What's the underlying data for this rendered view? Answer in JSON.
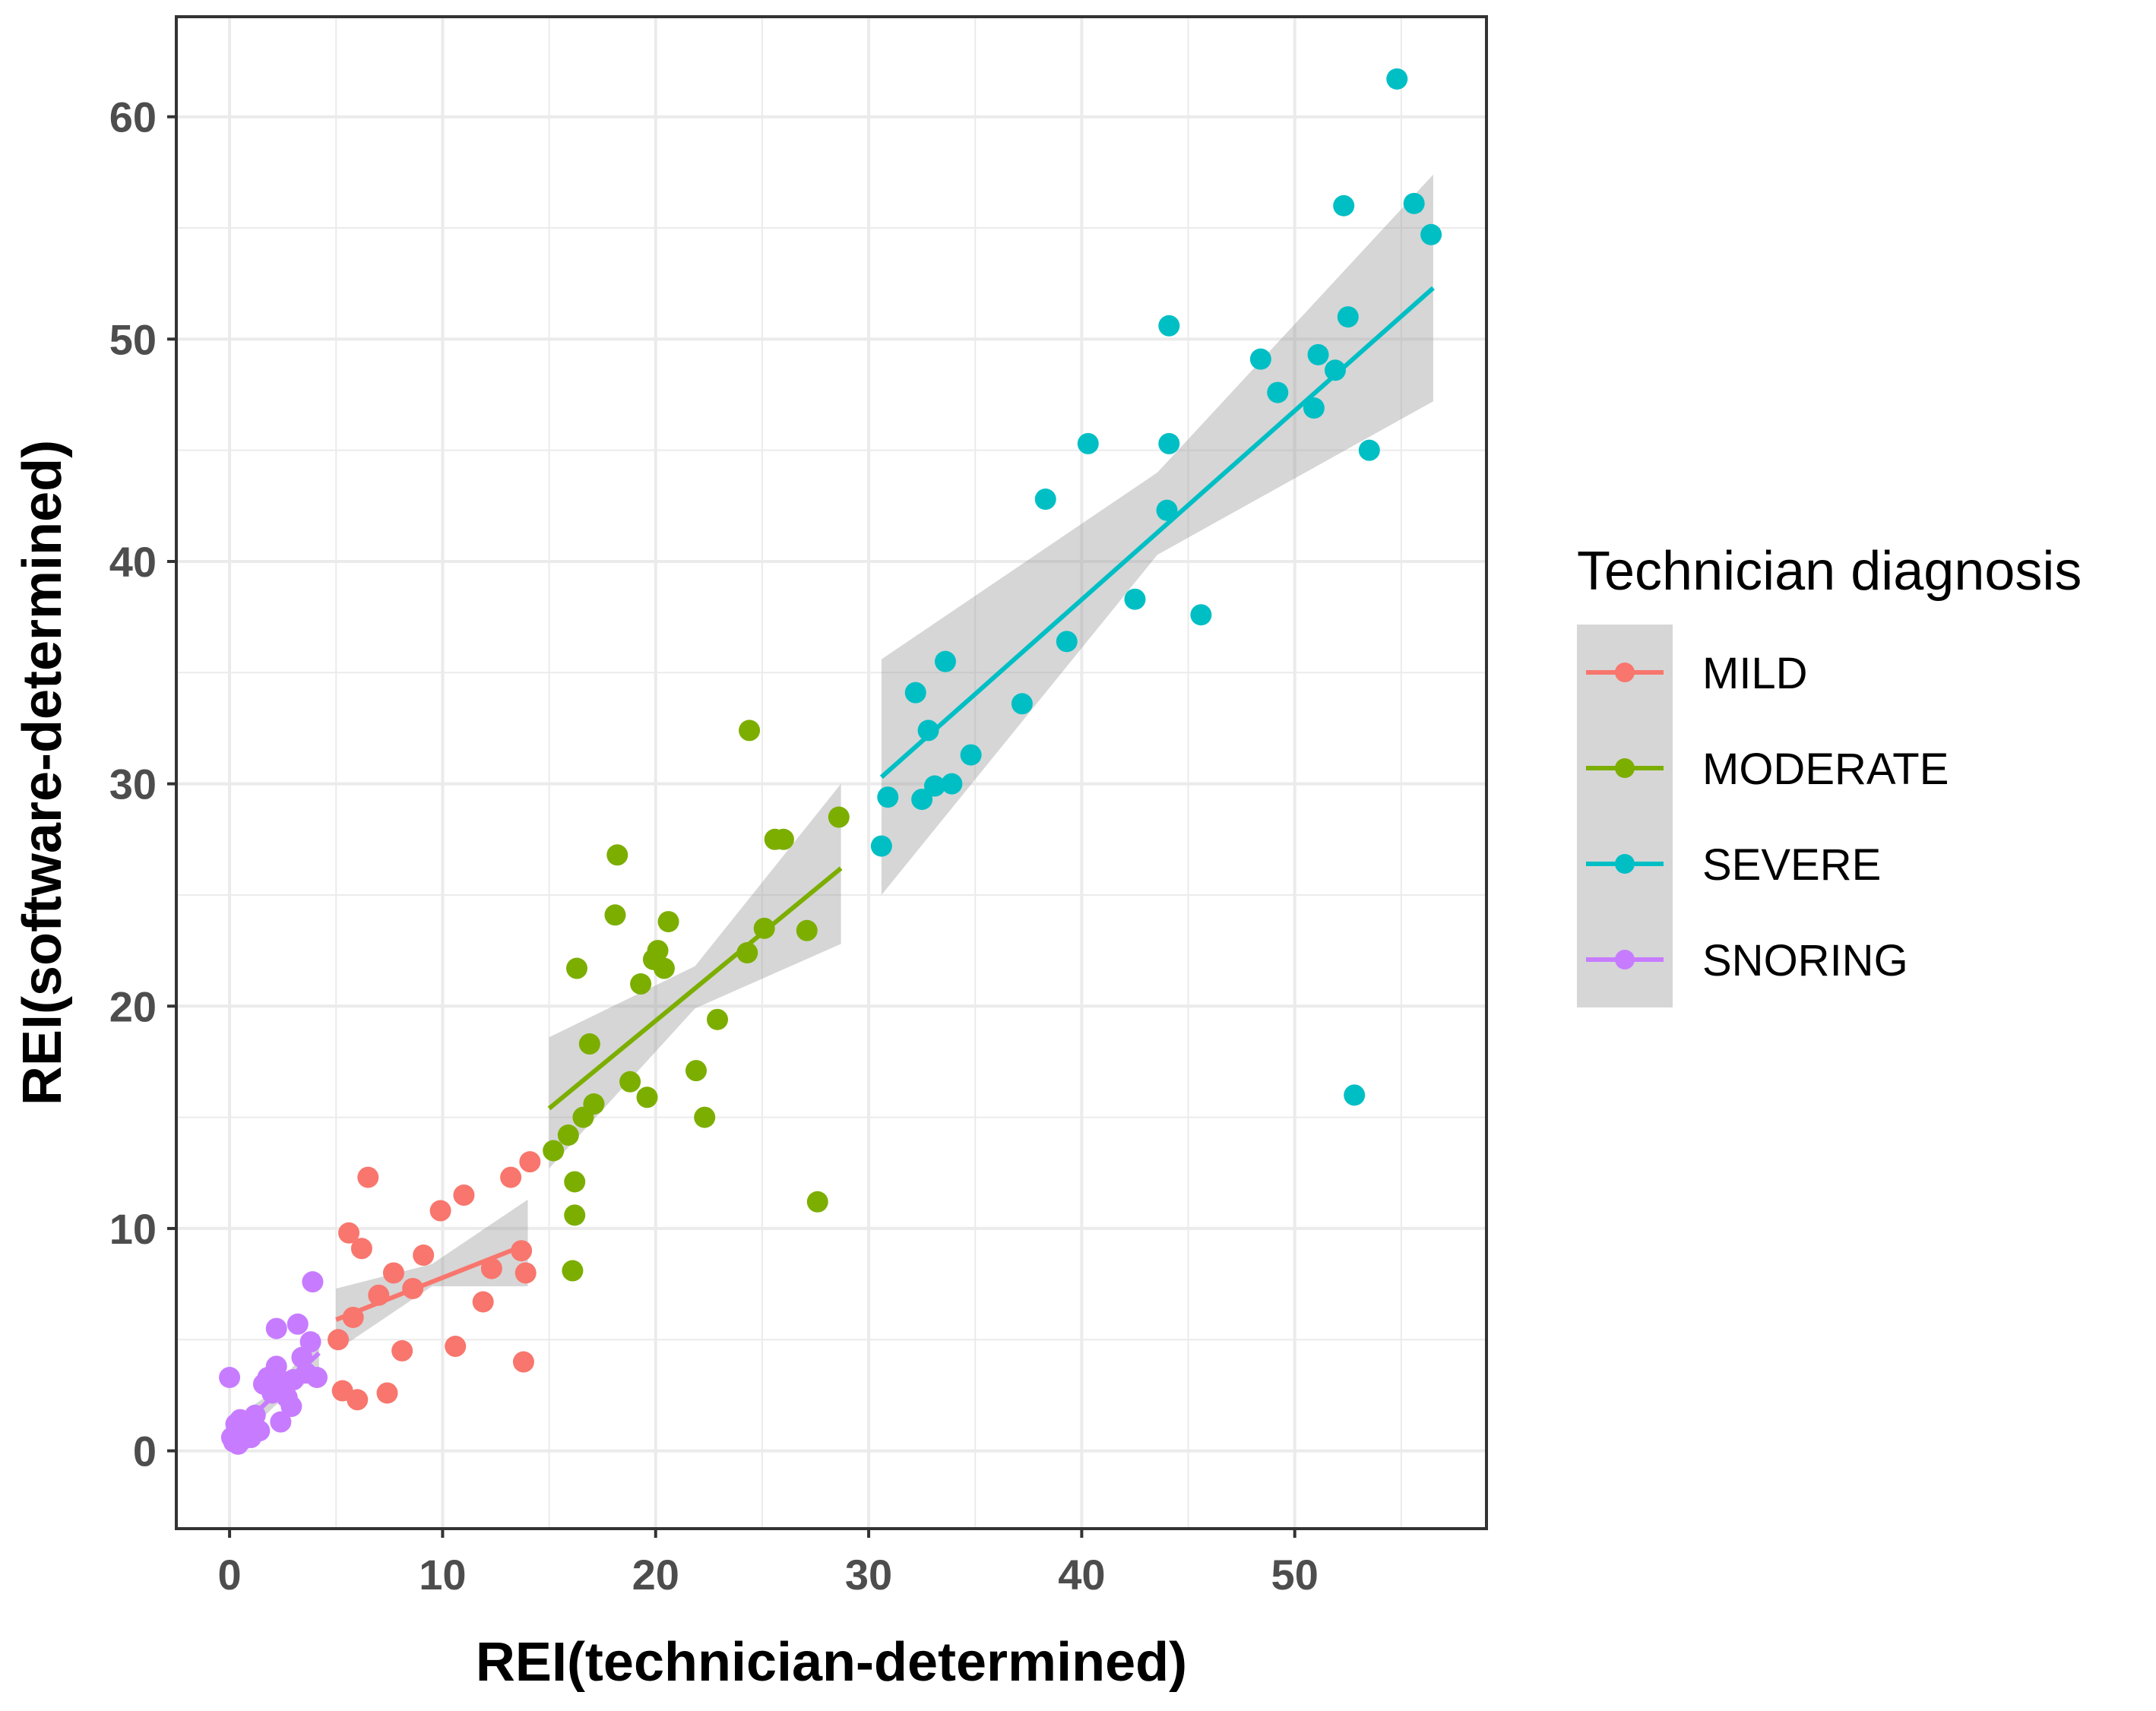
{
  "chart_data": {
    "type": "scatter",
    "xlabel": "REI(technician-determined)",
    "ylabel": "REI(software-determined)",
    "xlim": [
      -2.5,
      59
    ],
    "ylim": [
      -3.5,
      64.5
    ],
    "xticks": [
      0,
      10,
      20,
      30,
      40,
      50
    ],
    "yticks": [
      0,
      10,
      20,
      30,
      40,
      50,
      60
    ],
    "grid": true,
    "legend": {
      "title": "Technician diagnosis",
      "placement": "right",
      "entries": [
        "MILD",
        "MODERATE",
        "SEVERE",
        "SNORING"
      ]
    },
    "series": [
      {
        "name": "MILD",
        "color": "#F8766D",
        "points": [
          [
            5.1,
            5.0
          ],
          [
            5.3,
            2.7
          ],
          [
            5.6,
            9.8
          ],
          [
            5.8,
            6.0
          ],
          [
            6.0,
            2.3
          ],
          [
            6.2,
            9.1
          ],
          [
            6.5,
            12.3
          ],
          [
            7.0,
            7.0
          ],
          [
            7.4,
            2.6
          ],
          [
            7.7,
            8.0
          ],
          [
            8.1,
            4.5
          ],
          [
            8.6,
            7.3
          ],
          [
            9.1,
            8.8
          ],
          [
            9.9,
            10.8
          ],
          [
            10.6,
            4.7
          ],
          [
            11.0,
            11.5
          ],
          [
            11.9,
            6.7
          ],
          [
            12.3,
            8.2
          ],
          [
            13.2,
            12.3
          ],
          [
            13.7,
            9.0
          ],
          [
            13.8,
            4.0
          ],
          [
            13.9,
            8.0
          ],
          [
            14.1,
            13.0
          ]
        ],
        "fit": {
          "x": [
            5.0,
            14.0
          ],
          "y": [
            5.9,
            9.3
          ]
        },
        "ci": {
          "x": [
            5.0,
            9.5,
            14.0
          ],
          "lower": [
            4.5,
            7.4,
            7.4
          ],
          "upper": [
            7.3,
            8.4,
            11.3
          ]
        }
      },
      {
        "name": "MODERATE",
        "color": "#7CAE00",
        "points": [
          [
            15.2,
            13.5
          ],
          [
            15.9,
            14.2
          ],
          [
            16.1,
            8.1
          ],
          [
            16.2,
            10.6
          ],
          [
            16.2,
            12.1
          ],
          [
            16.3,
            21.7
          ],
          [
            16.6,
            15.0
          ],
          [
            16.9,
            18.3
          ],
          [
            17.1,
            15.6
          ],
          [
            18.1,
            24.1
          ],
          [
            18.2,
            26.8
          ],
          [
            18.8,
            16.6
          ],
          [
            19.3,
            21.0
          ],
          [
            19.6,
            15.9
          ],
          [
            19.9,
            22.1
          ],
          [
            20.1,
            22.5
          ],
          [
            20.4,
            21.7
          ],
          [
            20.6,
            23.8
          ],
          [
            21.9,
            17.1
          ],
          [
            22.3,
            15.0
          ],
          [
            22.9,
            19.4
          ],
          [
            24.3,
            22.4
          ],
          [
            24.4,
            32.4
          ],
          [
            25.1,
            23.5
          ],
          [
            25.6,
            27.5
          ],
          [
            26.0,
            27.5
          ],
          [
            27.1,
            23.4
          ],
          [
            27.6,
            11.2
          ],
          [
            28.6,
            28.5
          ]
        ],
        "fit": {
          "x": [
            15.0,
            28.7
          ],
          "y": [
            15.4,
            26.2
          ]
        },
        "ci": {
          "x": [
            15.0,
            21.85,
            28.7
          ],
          "lower": [
            12.7,
            19.9,
            22.8
          ],
          "upper": [
            18.6,
            21.8,
            30.0
          ]
        }
      },
      {
        "name": "SEVERE",
        "color": "#00BFC4",
        "points": [
          [
            30.6,
            27.2
          ],
          [
            30.9,
            29.4
          ],
          [
            32.2,
            34.1
          ],
          [
            32.5,
            29.3
          ],
          [
            32.8,
            32.4
          ],
          [
            33.1,
            29.9
          ],
          [
            33.6,
            35.5
          ],
          [
            33.9,
            30.0
          ],
          [
            34.8,
            31.3
          ],
          [
            37.2,
            33.6
          ],
          [
            38.3,
            42.8
          ],
          [
            39.3,
            36.4
          ],
          [
            40.3,
            45.3
          ],
          [
            42.5,
            38.3
          ],
          [
            44.0,
            42.3
          ],
          [
            44.1,
            45.3
          ],
          [
            44.1,
            50.6
          ],
          [
            45.6,
            37.6
          ],
          [
            48.4,
            49.1
          ],
          [
            49.2,
            47.6
          ],
          [
            50.9,
            46.9
          ],
          [
            51.1,
            49.3
          ],
          [
            51.9,
            48.6
          ],
          [
            52.3,
            56.0
          ],
          [
            52.5,
            51.0
          ],
          [
            52.8,
            16.0
          ],
          [
            53.5,
            45.0
          ],
          [
            54.8,
            61.7
          ],
          [
            55.6,
            56.1
          ],
          [
            56.4,
            54.7
          ]
        ],
        "fit": {
          "x": [
            30.6,
            56.5
          ],
          "y": [
            30.3,
            52.3
          ]
        },
        "ci": {
          "x": [
            30.6,
            43.55,
            56.5
          ],
          "lower": [
            25.0,
            40.3,
            47.2
          ],
          "upper": [
            35.6,
            44.0,
            57.4
          ]
        }
      },
      {
        "name": "SNORING",
        "color": "#C77CFF",
        "points": [
          [
            0.0,
            3.3
          ],
          [
            0.1,
            0.6
          ],
          [
            0.2,
            0.4
          ],
          [
            0.3,
            1.2
          ],
          [
            0.4,
            0.3
          ],
          [
            0.5,
            1.4
          ],
          [
            0.6,
            0.5
          ],
          [
            0.7,
            0.8
          ],
          [
            0.8,
            1.0
          ],
          [
            1.0,
            0.6
          ],
          [
            1.2,
            1.6
          ],
          [
            1.4,
            0.9
          ],
          [
            1.6,
            3.0
          ],
          [
            1.8,
            3.3
          ],
          [
            2.0,
            2.6
          ],
          [
            2.2,
            5.5
          ],
          [
            2.2,
            3.8
          ],
          [
            2.4,
            1.3
          ],
          [
            2.6,
            3.1
          ],
          [
            2.7,
            2.4
          ],
          [
            2.9,
            2.0
          ],
          [
            3.0,
            3.2
          ],
          [
            3.2,
            5.7
          ],
          [
            3.4,
            4.2
          ],
          [
            3.6,
            3.5
          ],
          [
            3.8,
            4.9
          ],
          [
            3.9,
            7.6
          ],
          [
            4.1,
            3.3
          ]
        ],
        "fit": {
          "x": [
            0.0,
            4.2
          ],
          "y": [
            0.6,
            4.4
          ]
        },
        "ci": {
          "x": [
            0.0,
            2.1,
            4.2
          ],
          "lower": [
            0.0,
            2.0,
            3.5
          ],
          "upper": [
            1.3,
            2.7,
            5.3
          ]
        }
      }
    ]
  }
}
